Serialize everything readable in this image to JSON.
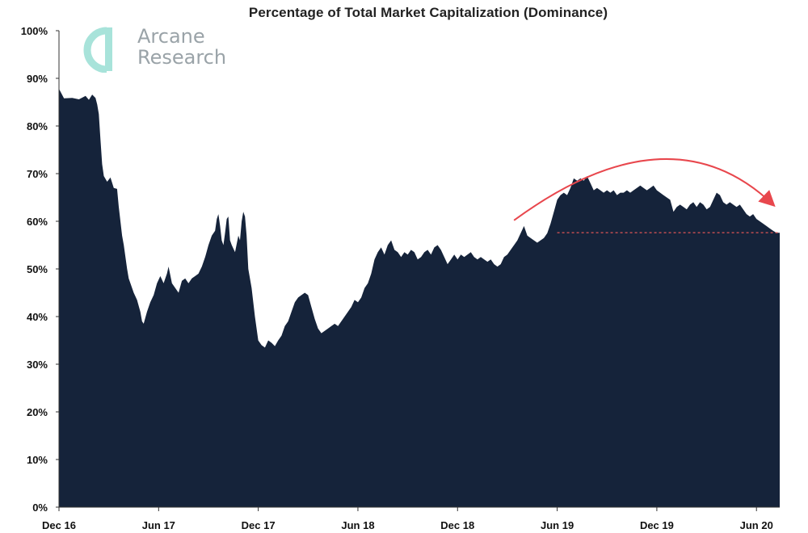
{
  "logo": {
    "line1": "Arcane",
    "line2": "Research",
    "color": "#9aa3a8",
    "mark_color": "#a8e3da"
  },
  "chart_data": {
    "type": "area",
    "title": "Percentage of Total Market Capitalization (Dominance)",
    "xlabel": "",
    "ylabel": "",
    "ylim": [
      0,
      100
    ],
    "grid": false,
    "area_color": "#15233a",
    "y_ticks": [
      "0%",
      "10%",
      "20%",
      "30%",
      "40%",
      "50%",
      "60%",
      "70%",
      "80%",
      "90%",
      "100%"
    ],
    "x_ticks": [
      {
        "label": "Dec 16",
        "t": 0
      },
      {
        "label": "Jun 17",
        "t": 6
      },
      {
        "label": "Dec 17",
        "t": 12
      },
      {
        "label": "Jun 18",
        "t": 18
      },
      {
        "label": "Dec 18",
        "t": 24
      },
      {
        "label": "Jun 19",
        "t": 30
      },
      {
        "label": "Dec 19",
        "t": 36
      },
      {
        "label": "Jun 20",
        "t": 42
      }
    ],
    "x_range_months": [
      0,
      43.4
    ],
    "series": [
      {
        "points": [
          [
            0,
            87.8
          ],
          [
            0.3,
            85.8
          ],
          [
            0.8,
            85.9
          ],
          [
            1.2,
            85.6
          ],
          [
            1.6,
            86.3
          ],
          [
            1.8,
            85.5
          ],
          [
            2.0,
            86.6
          ],
          [
            2.2,
            85.9
          ],
          [
            2.3,
            84.5
          ],
          [
            2.4,
            82.5
          ],
          [
            2.5,
            77
          ],
          [
            2.6,
            72
          ],
          [
            2.7,
            69.5
          ],
          [
            2.9,
            68.3
          ],
          [
            3.1,
            69.2
          ],
          [
            3.3,
            67
          ],
          [
            3.5,
            66.8
          ],
          [
            3.6,
            63
          ],
          [
            3.8,
            57
          ],
          [
            3.9,
            55
          ],
          [
            4.1,
            50
          ],
          [
            4.2,
            48
          ],
          [
            4.3,
            47
          ],
          [
            4.5,
            45
          ],
          [
            4.7,
            43.5
          ],
          [
            4.9,
            41
          ],
          [
            5.0,
            39
          ],
          [
            5.1,
            38.5
          ],
          [
            5.3,
            41
          ],
          [
            5.5,
            43
          ],
          [
            5.7,
            44.5
          ],
          [
            5.9,
            47
          ],
          [
            6.1,
            48.5
          ],
          [
            6.3,
            47
          ],
          [
            6.5,
            49
          ],
          [
            6.6,
            50.5
          ],
          [
            6.8,
            47
          ],
          [
            7.0,
            46
          ],
          [
            7.2,
            45
          ],
          [
            7.4,
            47.5
          ],
          [
            7.6,
            48
          ],
          [
            7.8,
            47
          ],
          [
            8.0,
            48
          ],
          [
            8.2,
            48.5
          ],
          [
            8.4,
            49
          ],
          [
            8.6,
            50.5
          ],
          [
            8.8,
            52.5
          ],
          [
            9.0,
            55
          ],
          [
            9.2,
            57
          ],
          [
            9.4,
            58
          ],
          [
            9.5,
            60.5
          ],
          [
            9.6,
            61.5
          ],
          [
            9.7,
            59
          ],
          [
            9.8,
            56
          ],
          [
            9.9,
            55
          ],
          [
            10.0,
            57.5
          ],
          [
            10.1,
            60.5
          ],
          [
            10.2,
            61
          ],
          [
            10.3,
            56
          ],
          [
            10.4,
            55
          ],
          [
            10.6,
            53.5
          ],
          [
            10.8,
            57
          ],
          [
            10.9,
            56
          ],
          [
            11.0,
            60
          ],
          [
            11.1,
            62
          ],
          [
            11.2,
            61
          ],
          [
            11.3,
            57
          ],
          [
            11.4,
            50
          ],
          [
            11.6,
            46
          ],
          [
            11.8,
            40
          ],
          [
            12.0,
            35
          ],
          [
            12.2,
            34
          ],
          [
            12.4,
            33.5
          ],
          [
            12.6,
            35
          ],
          [
            12.8,
            34.5
          ],
          [
            13.0,
            33.8
          ],
          [
            13.2,
            35
          ],
          [
            13.4,
            36
          ],
          [
            13.6,
            38
          ],
          [
            13.8,
            39
          ],
          [
            14.0,
            41
          ],
          [
            14.2,
            43
          ],
          [
            14.4,
            44
          ],
          [
            14.6,
            44.5
          ],
          [
            14.8,
            45
          ],
          [
            15.0,
            44.5
          ],
          [
            15.2,
            42
          ],
          [
            15.4,
            39.5
          ],
          [
            15.6,
            37.5
          ],
          [
            15.8,
            36.5
          ],
          [
            16.0,
            37
          ],
          [
            16.2,
            37.5
          ],
          [
            16.4,
            38
          ],
          [
            16.6,
            38.5
          ],
          [
            16.8,
            38
          ],
          [
            17.0,
            39
          ],
          [
            17.2,
            40
          ],
          [
            17.4,
            41
          ],
          [
            17.6,
            42
          ],
          [
            17.8,
            43.5
          ],
          [
            18.0,
            43
          ],
          [
            18.2,
            44
          ],
          [
            18.4,
            46
          ],
          [
            18.6,
            47
          ],
          [
            18.8,
            49
          ],
          [
            19.0,
            52
          ],
          [
            19.2,
            53.5
          ],
          [
            19.4,
            54.5
          ],
          [
            19.6,
            53
          ],
          [
            19.8,
            55
          ],
          [
            20.0,
            56
          ],
          [
            20.2,
            54
          ],
          [
            20.4,
            53.5
          ],
          [
            20.6,
            52.5
          ],
          [
            20.8,
            53.5
          ],
          [
            21.0,
            53
          ],
          [
            21.2,
            54
          ],
          [
            21.4,
            53.5
          ],
          [
            21.6,
            52
          ],
          [
            21.8,
            52.5
          ],
          [
            22.0,
            53.5
          ],
          [
            22.2,
            54
          ],
          [
            22.4,
            53
          ],
          [
            22.6,
            54.5
          ],
          [
            22.8,
            55
          ],
          [
            23.0,
            54
          ],
          [
            23.2,
            52.5
          ],
          [
            23.4,
            51
          ],
          [
            23.6,
            52
          ],
          [
            23.8,
            53
          ],
          [
            24.0,
            52
          ],
          [
            24.2,
            53
          ],
          [
            24.4,
            52.5
          ],
          [
            24.6,
            53
          ],
          [
            24.8,
            53.5
          ],
          [
            25.0,
            52.5
          ],
          [
            25.2,
            52
          ],
          [
            25.4,
            52.5
          ],
          [
            25.6,
            52
          ],
          [
            25.8,
            51.5
          ],
          [
            26.0,
            52
          ],
          [
            26.2,
            51
          ],
          [
            26.4,
            50.5
          ],
          [
            26.6,
            51
          ],
          [
            26.8,
            52.5
          ],
          [
            27.0,
            53
          ],
          [
            27.2,
            54
          ],
          [
            27.4,
            55
          ],
          [
            27.6,
            56
          ],
          [
            27.8,
            57.5
          ],
          [
            28.0,
            59
          ],
          [
            28.2,
            57
          ],
          [
            28.4,
            56.5
          ],
          [
            28.6,
            56
          ],
          [
            28.8,
            55.5
          ],
          [
            29.0,
            56
          ],
          [
            29.2,
            56.5
          ],
          [
            29.4,
            57.5
          ],
          [
            29.6,
            59.5
          ],
          [
            29.8,
            62
          ],
          [
            30.0,
            64.5
          ],
          [
            30.2,
            65.5
          ],
          [
            30.4,
            66
          ],
          [
            30.6,
            65.5
          ],
          [
            30.8,
            67
          ],
          [
            31.0,
            69
          ],
          [
            31.2,
            68.5
          ],
          [
            31.4,
            69
          ],
          [
            31.6,
            68.5
          ],
          [
            31.8,
            69.5
          ],
          [
            32.0,
            68
          ],
          [
            32.2,
            66.5
          ],
          [
            32.4,
            67
          ],
          [
            32.6,
            66.5
          ],
          [
            32.8,
            66
          ],
          [
            33.0,
            66.5
          ],
          [
            33.2,
            66
          ],
          [
            33.4,
            66.5
          ],
          [
            33.6,
            65.5
          ],
          [
            33.8,
            66
          ],
          [
            34.0,
            66
          ],
          [
            34.2,
            66.5
          ],
          [
            34.4,
            66
          ],
          [
            34.6,
            66.5
          ],
          [
            34.8,
            67
          ],
          [
            35.0,
            67.5
          ],
          [
            35.2,
            67
          ],
          [
            35.4,
            66.5
          ],
          [
            35.6,
            67
          ],
          [
            35.8,
            67.5
          ],
          [
            36.0,
            66.5
          ],
          [
            36.2,
            66
          ],
          [
            36.4,
            65.5
          ],
          [
            36.6,
            65
          ],
          [
            36.8,
            64.5
          ],
          [
            37.0,
            62
          ],
          [
            37.2,
            63
          ],
          [
            37.4,
            63.5
          ],
          [
            37.6,
            63
          ],
          [
            37.8,
            62.5
          ],
          [
            38.0,
            63.5
          ],
          [
            38.2,
            64
          ],
          [
            38.4,
            63
          ],
          [
            38.6,
            64
          ],
          [
            38.8,
            63.5
          ],
          [
            39.0,
            62.5
          ],
          [
            39.2,
            63
          ],
          [
            39.4,
            64.5
          ],
          [
            39.6,
            66
          ],
          [
            39.8,
            65.5
          ],
          [
            40.0,
            64
          ],
          [
            40.2,
            63.5
          ],
          [
            40.4,
            64
          ],
          [
            40.6,
            63.5
          ],
          [
            40.8,
            63
          ],
          [
            41.0,
            63.5
          ],
          [
            41.2,
            62.5
          ],
          [
            41.4,
            61.5
          ],
          [
            41.6,
            61
          ],
          [
            41.8,
            61.5
          ],
          [
            42.0,
            60.5
          ],
          [
            42.2,
            60
          ],
          [
            42.4,
            59.5
          ],
          [
            42.6,
            59
          ],
          [
            42.8,
            58.5
          ],
          [
            43.0,
            58
          ],
          [
            43.2,
            57.6
          ],
          [
            43.4,
            57.6
          ]
        ]
      }
    ],
    "annotations": {
      "reference_line": {
        "value": 57.6,
        "x_from": 30.0,
        "x_to": 43.4,
        "style": "dashed",
        "color": "#e05555"
      },
      "arrow": {
        "from": [
          27.4,
          60.2
        ],
        "peak": [
          36,
          73
        ],
        "to": [
          43.0,
          63.5
        ],
        "color": "#e8474d"
      }
    }
  }
}
